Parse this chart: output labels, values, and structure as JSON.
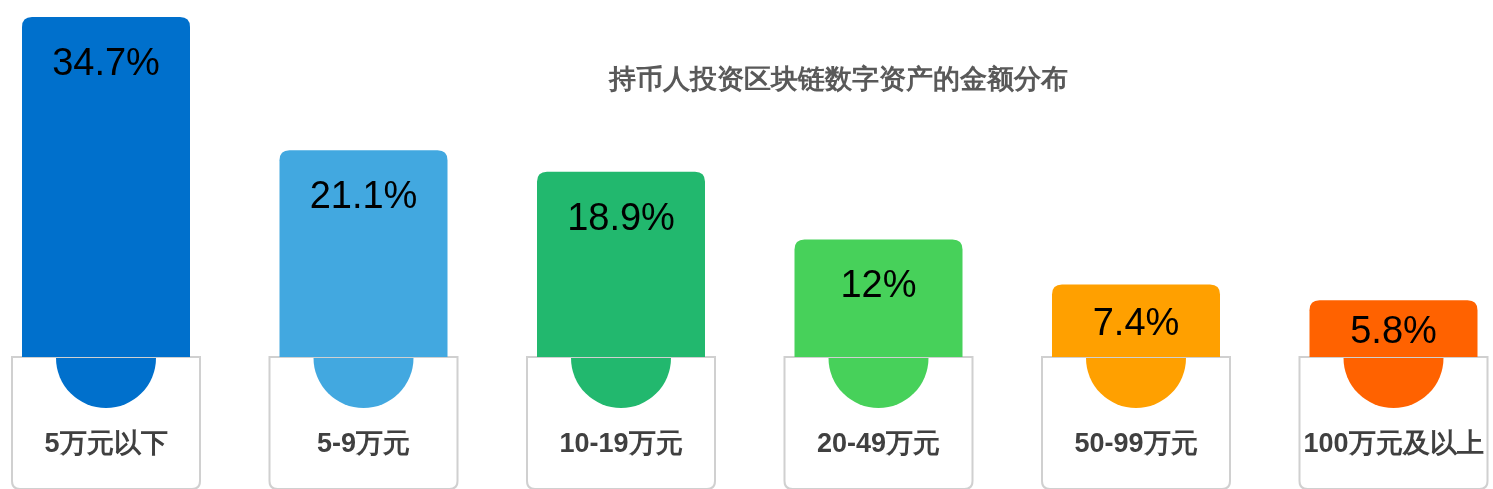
{
  "chart_data": {
    "type": "bar",
    "title": "持币人投资区块链数字资产的金额分布",
    "categories": [
      "5万元以下",
      "5-9万元",
      "10-19万元",
      "20-49万元",
      "50-99万元",
      "100万元及以上"
    ],
    "values": [
      34.7,
      21.1,
      18.9,
      12,
      7.4,
      5.8
    ],
    "value_labels": [
      "34.7%",
      "21.1%",
      "18.9%",
      "12%",
      "7.4%",
      "5.8%"
    ],
    "colors": [
      "#0070cc",
      "#42a8e0",
      "#22b86e",
      "#47d15a",
      "#ffa000",
      "#ff6200"
    ]
  }
}
